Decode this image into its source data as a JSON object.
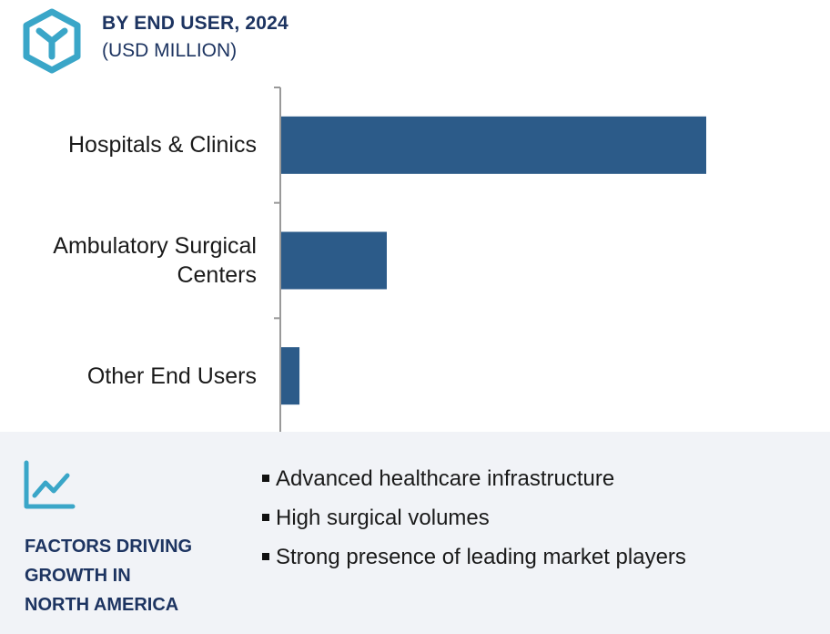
{
  "header": {
    "title": "BY END USER, 2024",
    "subtitle": "(USD MILLION)",
    "logo_icon": "hexagon-y-logo-icon"
  },
  "colors": {
    "bar": "#2c5b89",
    "axis": "#999999",
    "heading": "#1d3461",
    "logo": "#3aa6c8",
    "panel_bg": "#f1f3f7"
  },
  "chart_data": {
    "type": "bar",
    "orientation": "horizontal",
    "categories": [
      "Hospitals & Clinics",
      "Ambulatory Surgical Centers",
      "Other End Users"
    ],
    "category_lines": [
      [
        "Hospitals & Clinics"
      ],
      [
        "Ambulatory Surgical",
        "Centers"
      ],
      [
        "Other End Users"
      ]
    ],
    "values": [
      100,
      25,
      4.5
    ],
    "xlim": [
      0,
      100
    ],
    "grid": false,
    "title": "BY END USER, 2024",
    "subtitle": "(USD MILLION)"
  },
  "factors": {
    "icon": "line-chart-growth-icon",
    "title_lines": [
      "FACTORS DRIVING",
      "GROWTH IN",
      "NORTH AMERICA"
    ],
    "items": [
      "Advanced healthcare infrastructure",
      "High surgical volumes",
      "Strong presence of leading market players"
    ]
  }
}
